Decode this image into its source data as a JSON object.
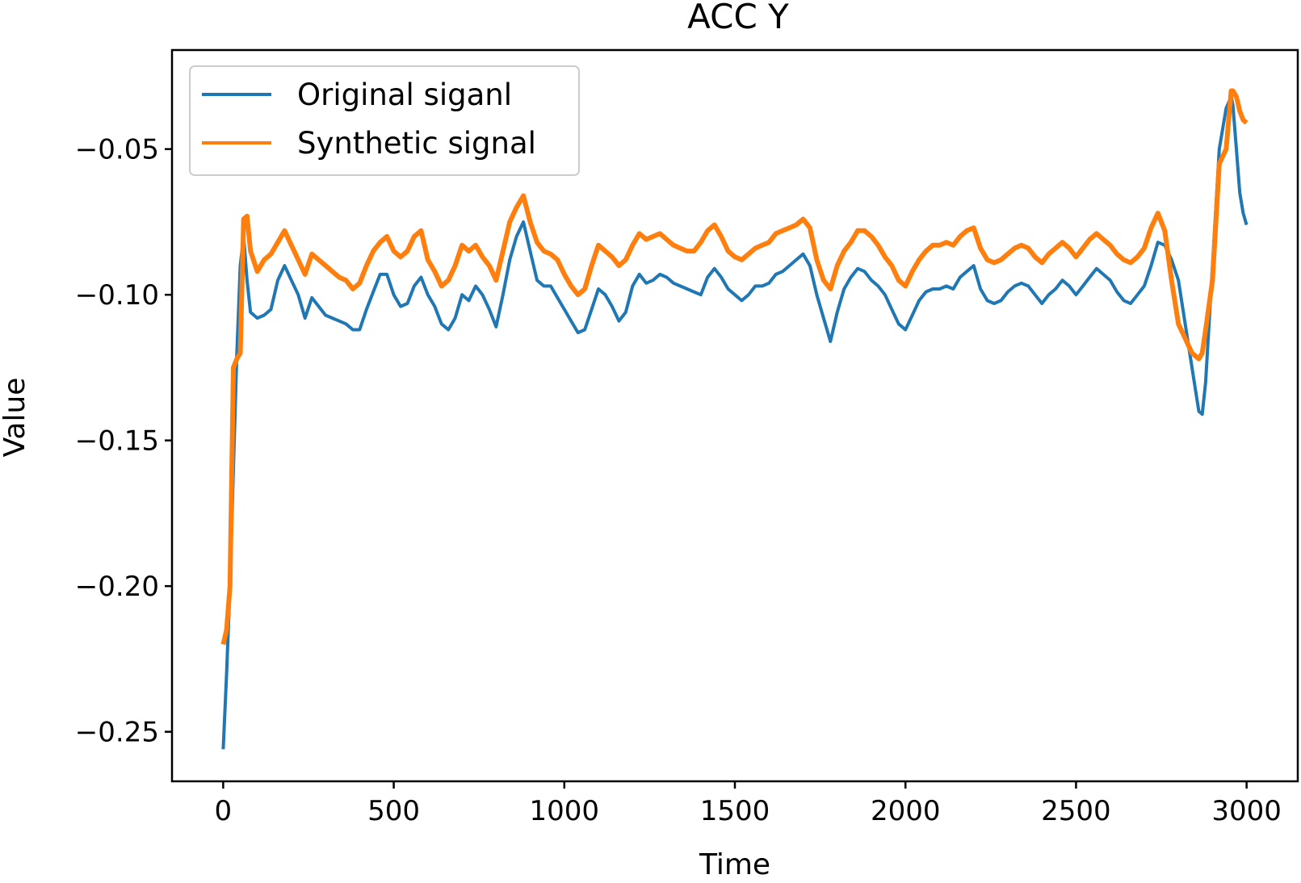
{
  "chart_data": {
    "type": "line",
    "title": "ACC Y",
    "xlabel": "Time",
    "ylabel": "Value",
    "xlim": [
      -150,
      3150
    ],
    "ylim": [
      -0.267,
      -0.016
    ],
    "xticks": [
      0,
      500,
      1000,
      1500,
      2000,
      2500,
      3000
    ],
    "xtick_labels": [
      "0",
      "500",
      "1000",
      "1500",
      "2000",
      "2500",
      "3000"
    ],
    "yticks": [
      -0.25,
      -0.2,
      -0.15,
      -0.1,
      -0.05
    ],
    "ytick_labels": [
      "−0.25",
      "−0.20",
      "−0.15",
      "−0.10",
      "−0.05"
    ],
    "grid": false,
    "legend_position": "top-left",
    "series": [
      {
        "name": "Original siganl",
        "color": "#1f77b4",
        "x": [
          0,
          10,
          20,
          30,
          40,
          50,
          60,
          70,
          80,
          100,
          120,
          140,
          160,
          180,
          200,
          220,
          240,
          260,
          280,
          300,
          320,
          340,
          360,
          380,
          400,
          420,
          440,
          460,
          480,
          500,
          520,
          540,
          560,
          580,
          600,
          620,
          640,
          660,
          680,
          700,
          720,
          740,
          760,
          780,
          800,
          820,
          840,
          860,
          880,
          900,
          920,
          940,
          960,
          980,
          1000,
          1020,
          1040,
          1060,
          1080,
          1100,
          1120,
          1140,
          1160,
          1180,
          1200,
          1220,
          1240,
          1260,
          1280,
          1300,
          1320,
          1340,
          1360,
          1380,
          1400,
          1420,
          1440,
          1460,
          1480,
          1500,
          1520,
          1540,
          1560,
          1580,
          1600,
          1620,
          1640,
          1660,
          1680,
          1700,
          1720,
          1740,
          1760,
          1780,
          1800,
          1820,
          1840,
          1860,
          1880,
          1900,
          1920,
          1940,
          1960,
          1980,
          2000,
          2020,
          2040,
          2060,
          2080,
          2100,
          2120,
          2140,
          2160,
          2180,
          2200,
          2220,
          2240,
          2260,
          2280,
          2300,
          2320,
          2340,
          2360,
          2380,
          2400,
          2420,
          2440,
          2460,
          2480,
          2500,
          2520,
          2540,
          2560,
          2580,
          2600,
          2620,
          2640,
          2660,
          2680,
          2700,
          2720,
          2740,
          2760,
          2780,
          2800,
          2820,
          2840,
          2860,
          2870,
          2880,
          2900,
          2920,
          2940,
          2955,
          2960,
          2970,
          2980,
          2990,
          3000
        ],
        "y": [
          -0.256,
          -0.23,
          -0.2,
          -0.16,
          -0.12,
          -0.09,
          -0.08,
          -0.095,
          -0.106,
          -0.108,
          -0.107,
          -0.105,
          -0.095,
          -0.09,
          -0.095,
          -0.1,
          -0.108,
          -0.101,
          -0.104,
          -0.107,
          -0.108,
          -0.109,
          -0.11,
          -0.112,
          -0.112,
          -0.105,
          -0.099,
          -0.093,
          -0.093,
          -0.1,
          -0.104,
          -0.103,
          -0.097,
          -0.094,
          -0.1,
          -0.104,
          -0.11,
          -0.112,
          -0.108,
          -0.1,
          -0.102,
          -0.097,
          -0.1,
          -0.105,
          -0.111,
          -0.1,
          -0.088,
          -0.08,
          -0.075,
          -0.085,
          -0.095,
          -0.097,
          -0.097,
          -0.101,
          -0.105,
          -0.109,
          -0.113,
          -0.112,
          -0.105,
          -0.098,
          -0.1,
          -0.104,
          -0.109,
          -0.106,
          -0.097,
          -0.093,
          -0.096,
          -0.095,
          -0.093,
          -0.094,
          -0.096,
          -0.097,
          -0.098,
          -0.099,
          -0.1,
          -0.094,
          -0.091,
          -0.094,
          -0.098,
          -0.1,
          -0.102,
          -0.1,
          -0.097,
          -0.097,
          -0.096,
          -0.093,
          -0.092,
          -0.09,
          -0.088,
          -0.086,
          -0.09,
          -0.1,
          -0.108,
          -0.116,
          -0.106,
          -0.098,
          -0.094,
          -0.091,
          -0.092,
          -0.095,
          -0.097,
          -0.1,
          -0.105,
          -0.11,
          -0.112,
          -0.107,
          -0.102,
          -0.099,
          -0.098,
          -0.098,
          -0.097,
          -0.098,
          -0.094,
          -0.092,
          -0.09,
          -0.098,
          -0.102,
          -0.103,
          -0.102,
          -0.099,
          -0.097,
          -0.096,
          -0.097,
          -0.1,
          -0.103,
          -0.1,
          -0.098,
          -0.095,
          -0.097,
          -0.1,
          -0.097,
          -0.094,
          -0.091,
          -0.093,
          -0.095,
          -0.099,
          -0.102,
          -0.103,
          -0.1,
          -0.097,
          -0.09,
          -0.082,
          -0.083,
          -0.088,
          -0.095,
          -0.11,
          -0.125,
          -0.14,
          -0.141,
          -0.13,
          -0.09,
          -0.05,
          -0.036,
          -0.032,
          -0.035,
          -0.05,
          -0.065,
          -0.072,
          -0.076
        ]
      },
      {
        "name": "Synthetic signal",
        "color": "#ff7f0e",
        "x": [
          0,
          10,
          20,
          30,
          40,
          50,
          60,
          70,
          80,
          100,
          120,
          140,
          160,
          180,
          200,
          220,
          240,
          260,
          280,
          300,
          320,
          340,
          360,
          380,
          400,
          420,
          440,
          460,
          480,
          500,
          520,
          540,
          560,
          580,
          600,
          620,
          640,
          660,
          680,
          700,
          720,
          740,
          760,
          780,
          800,
          820,
          840,
          860,
          880,
          900,
          920,
          940,
          960,
          980,
          1000,
          1020,
          1040,
          1060,
          1080,
          1100,
          1120,
          1140,
          1160,
          1180,
          1200,
          1220,
          1240,
          1260,
          1280,
          1300,
          1320,
          1340,
          1360,
          1380,
          1400,
          1420,
          1440,
          1460,
          1480,
          1500,
          1520,
          1540,
          1560,
          1580,
          1600,
          1620,
          1640,
          1660,
          1680,
          1700,
          1720,
          1740,
          1760,
          1780,
          1800,
          1820,
          1840,
          1860,
          1880,
          1900,
          1920,
          1940,
          1960,
          1980,
          2000,
          2020,
          2040,
          2060,
          2080,
          2100,
          2120,
          2140,
          2160,
          2180,
          2200,
          2220,
          2240,
          2260,
          2280,
          2300,
          2320,
          2340,
          2360,
          2380,
          2400,
          2420,
          2440,
          2460,
          2480,
          2500,
          2520,
          2540,
          2560,
          2580,
          2600,
          2620,
          2640,
          2660,
          2680,
          2700,
          2720,
          2740,
          2760,
          2780,
          2800,
          2820,
          2840,
          2860,
          2870,
          2880,
          2900,
          2920,
          2940,
          2955,
          2960,
          2970,
          2980,
          2990,
          3000
        ],
        "y": [
          -0.22,
          -0.215,
          -0.2,
          -0.125,
          -0.122,
          -0.12,
          -0.074,
          -0.073,
          -0.085,
          -0.092,
          -0.088,
          -0.086,
          -0.082,
          -0.078,
          -0.083,
          -0.088,
          -0.093,
          -0.086,
          -0.088,
          -0.09,
          -0.092,
          -0.094,
          -0.095,
          -0.098,
          -0.096,
          -0.09,
          -0.085,
          -0.082,
          -0.08,
          -0.085,
          -0.087,
          -0.085,
          -0.08,
          -0.078,
          -0.088,
          -0.092,
          -0.097,
          -0.095,
          -0.09,
          -0.083,
          -0.085,
          -0.083,
          -0.087,
          -0.09,
          -0.095,
          -0.085,
          -0.075,
          -0.07,
          -0.066,
          -0.075,
          -0.082,
          -0.085,
          -0.086,
          -0.088,
          -0.093,
          -0.097,
          -0.1,
          -0.098,
          -0.09,
          -0.083,
          -0.085,
          -0.087,
          -0.09,
          -0.088,
          -0.083,
          -0.079,
          -0.081,
          -0.08,
          -0.079,
          -0.081,
          -0.083,
          -0.084,
          -0.085,
          -0.085,
          -0.082,
          -0.078,
          -0.076,
          -0.08,
          -0.085,
          -0.087,
          -0.088,
          -0.086,
          -0.084,
          -0.083,
          -0.082,
          -0.079,
          -0.078,
          -0.077,
          -0.076,
          -0.074,
          -0.077,
          -0.088,
          -0.095,
          -0.098,
          -0.09,
          -0.085,
          -0.082,
          -0.078,
          -0.078,
          -0.08,
          -0.083,
          -0.087,
          -0.09,
          -0.095,
          -0.097,
          -0.092,
          -0.088,
          -0.085,
          -0.083,
          -0.083,
          -0.082,
          -0.083,
          -0.08,
          -0.078,
          -0.077,
          -0.084,
          -0.088,
          -0.089,
          -0.088,
          -0.086,
          -0.084,
          -0.083,
          -0.084,
          -0.087,
          -0.089,
          -0.086,
          -0.084,
          -0.082,
          -0.084,
          -0.087,
          -0.084,
          -0.081,
          -0.079,
          -0.081,
          -0.083,
          -0.086,
          -0.088,
          -0.089,
          -0.087,
          -0.084,
          -0.077,
          -0.072,
          -0.078,
          -0.095,
          -0.11,
          -0.115,
          -0.12,
          -0.122,
          -0.12,
          -0.112,
          -0.095,
          -0.055,
          -0.05,
          -0.03,
          -0.03,
          -0.032,
          -0.037,
          -0.04,
          -0.041
        ]
      }
    ]
  }
}
